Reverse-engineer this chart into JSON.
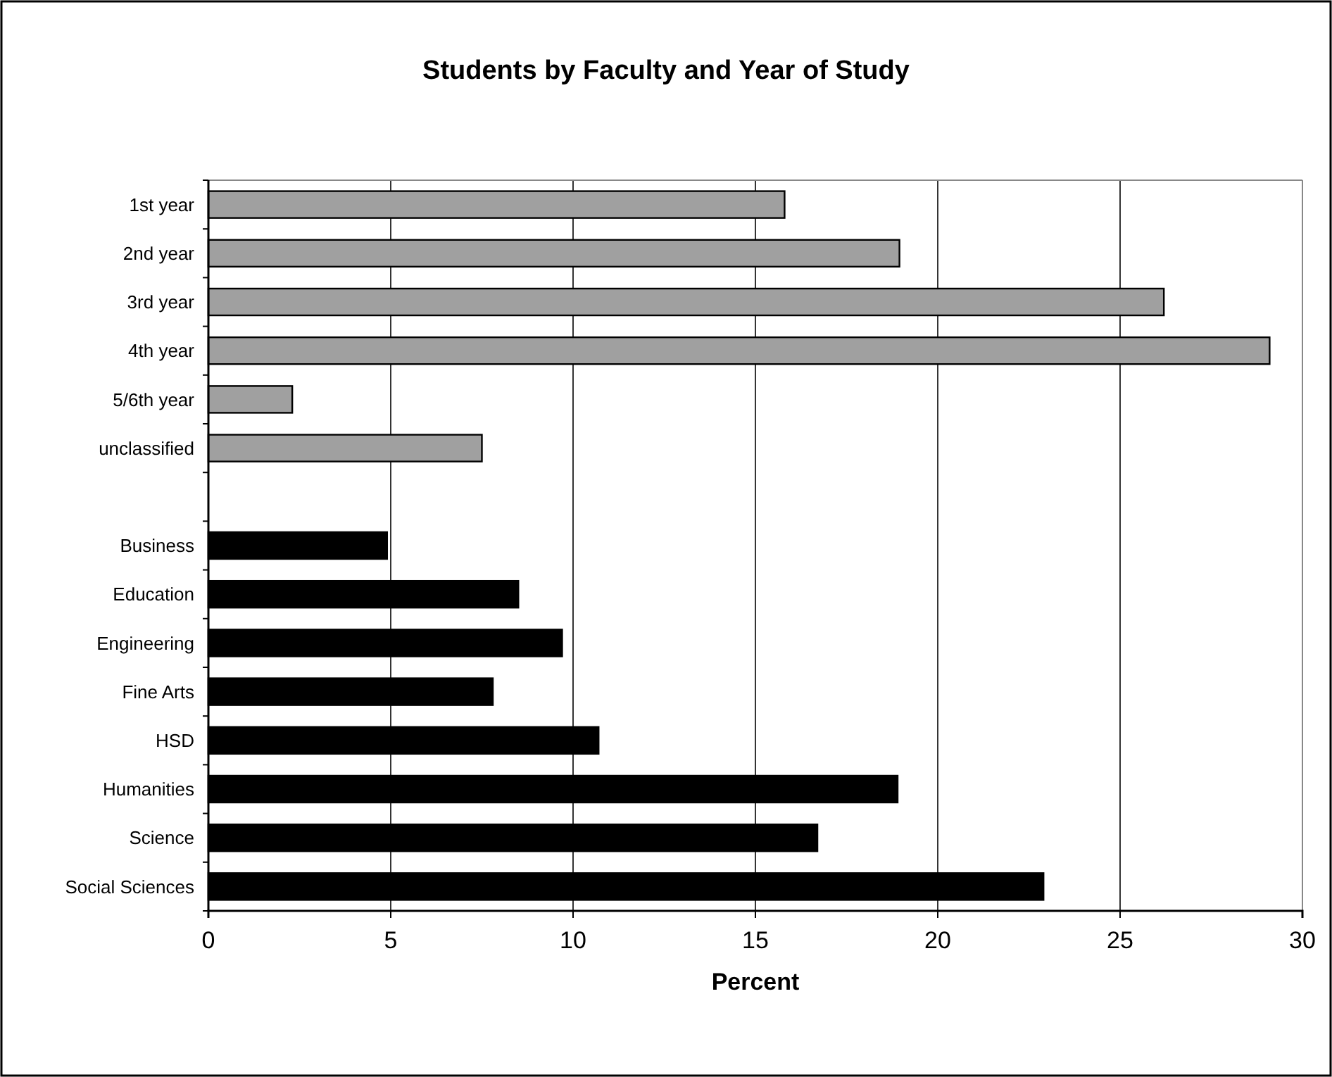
{
  "chart_data": {
    "type": "bar",
    "orientation": "horizontal",
    "title": "Students by Faculty and Year of Study",
    "xlabel": "Percent",
    "categories": [
      "1st year",
      "2nd year",
      "3rd year",
      "4th year",
      "5/6th year",
      "unclassified",
      null,
      "Business",
      "Education",
      "Engineering",
      "Fine Arts",
      "HSD",
      "Humanities",
      "Science",
      "Social Sciences"
    ],
    "values": [
      15.8,
      18.95,
      26.2,
      29.1,
      2.3,
      7.5,
      null,
      4.9,
      8.5,
      9.7,
      7.8,
      10.7,
      18.9,
      16.7,
      22.9
    ],
    "colors": [
      "#a0a0a0",
      "#a0a0a0",
      "#a0a0a0",
      "#a0a0a0",
      "#a0a0a0",
      "#a0a0a0",
      null,
      "#000000",
      "#000000",
      "#000000",
      "#000000",
      "#000000",
      "#000000",
      "#000000",
      "#000000"
    ],
    "xlim": [
      0,
      30
    ],
    "xticks": [
      0,
      5,
      10,
      15,
      20,
      25,
      30
    ],
    "grid": "x"
  }
}
